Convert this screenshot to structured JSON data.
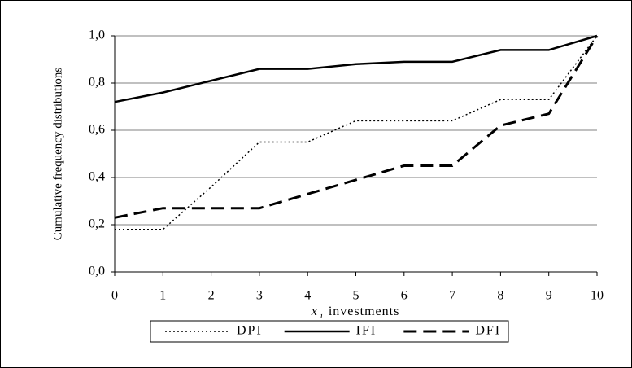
{
  "chart_data": {
    "type": "line",
    "y_label": "Cumulative frequency distributions",
    "x_label": {
      "var": "x",
      "sub": "i",
      "text": "investments"
    },
    "x": [
      0,
      1,
      2,
      3,
      4,
      5,
      6,
      7,
      8,
      9,
      10
    ],
    "xlim": [
      0,
      10
    ],
    "xticks": [
      0,
      1,
      2,
      3,
      4,
      5,
      6,
      7,
      8,
      9,
      10
    ],
    "ylim": [
      0,
      1
    ],
    "yticks": [
      {
        "value": 0,
        "label": "0,0"
      },
      {
        "value": 0.2,
        "label": "0,2"
      },
      {
        "value": 0.4,
        "label": "0,4"
      },
      {
        "value": 0.6,
        "label": "0,6"
      },
      {
        "value": 0.8,
        "label": "0,8"
      },
      {
        "value": 1,
        "label": "1,0"
      }
    ],
    "grid": true,
    "legend": "bottom",
    "series": [
      {
        "name": "DPI",
        "color": "#000000",
        "dash": "dotted",
        "values": [
          0.18,
          0.18,
          0.36,
          0.55,
          0.55,
          0.64,
          0.64,
          0.64,
          0.73,
          0.73,
          1.0
        ]
      },
      {
        "name": "IFI",
        "color": "#000000",
        "dash": "solid",
        "values": [
          0.72,
          0.76,
          0.81,
          0.86,
          0.86,
          0.88,
          0.89,
          0.89,
          0.94,
          0.94,
          1.0
        ]
      },
      {
        "name": "DFI",
        "color": "#000000",
        "dash": "dashed",
        "values": [
          0.23,
          0.27,
          0.27,
          0.27,
          0.33,
          0.39,
          0.45,
          0.45,
          0.62,
          0.67,
          1.0
        ]
      }
    ]
  }
}
